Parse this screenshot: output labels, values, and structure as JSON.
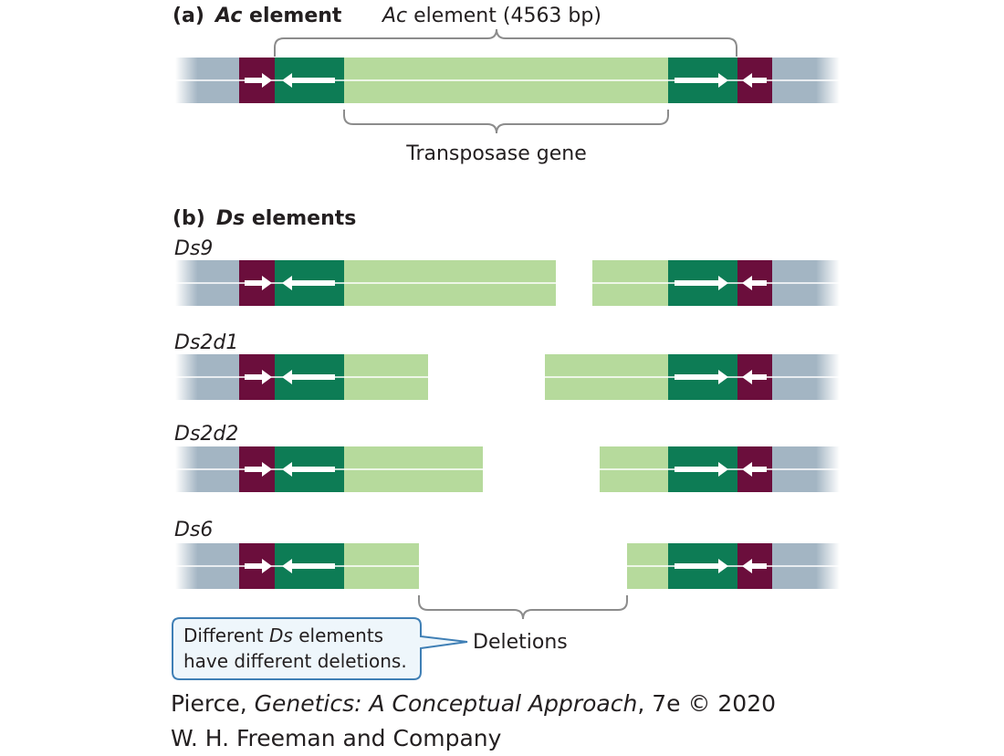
{
  "panel_a": {
    "letter": "(a)",
    "name": "Ac",
    "suffix": " element",
    "size_italic": "Ac",
    "size_rest": " element (4563 bp)",
    "gene_label": "Transposase gene"
  },
  "panel_b": {
    "letter": "(b)",
    "name": "Ds",
    "suffix": " elements",
    "rows": [
      {
        "label": "Ds9"
      },
      {
        "label": "Ds2d1"
      },
      {
        "label": "Ds2d2"
      },
      {
        "label": "Ds6"
      }
    ]
  },
  "deletions_label": "Deletions",
  "callout": {
    "line1_before": "Different ",
    "line1_italic": "Ds",
    "line1_after": " elements",
    "line2": "have different deletions."
  },
  "credit": {
    "line1_before": "Pierce, ",
    "line1_italic": "Genetics: A Conceptual Approach",
    "line1_after": ", 7e © 2020",
    "line2": "W. H. Freeman and Company"
  },
  "colors": {
    "flank": "#a3b5c3",
    "repeat": "#6b0e3c",
    "terminal": "#0d7c55",
    "gene": "#b6da9c",
    "strand_line": "#ffffff",
    "bracket": "#8c8c8c",
    "callout_border": "#3f7fb5",
    "callout_fill": "#eef6fb"
  }
}
